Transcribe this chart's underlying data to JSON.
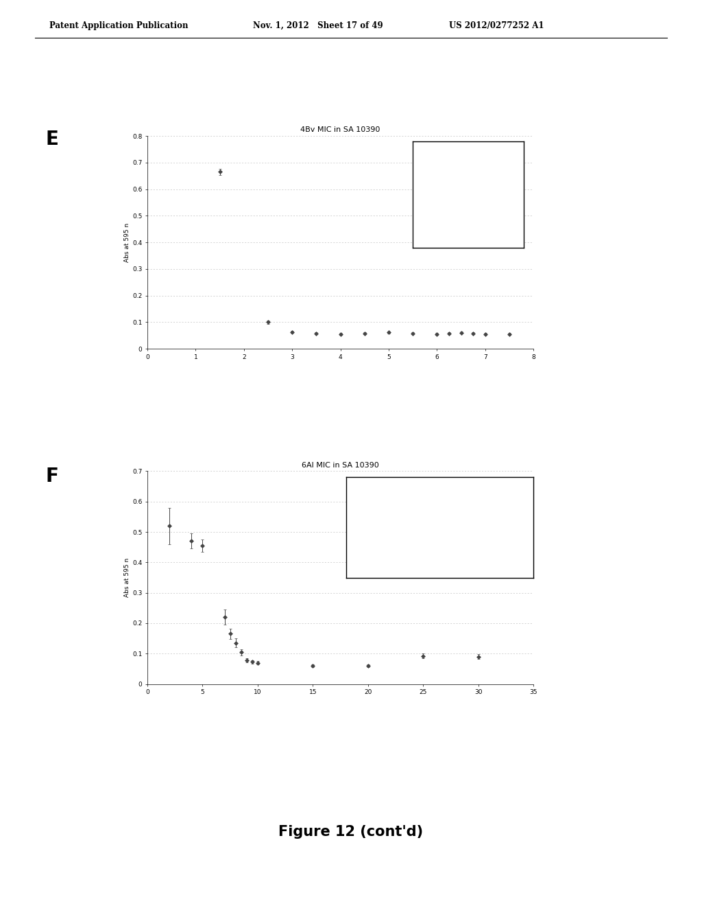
{
  "header_left": "Patent Application Publication",
  "header_mid": "Nov. 1, 2012   Sheet 17 of 49",
  "header_right": "US 2012/0277252 A1",
  "panel_E": {
    "label": "E",
    "title": "4Bv MIC in SA 10390",
    "ylabel": "Abs at 595 n",
    "xlim": [
      0,
      8
    ],
    "ylim": [
      0,
      0.8
    ],
    "yticks": [
      0,
      0.1,
      0.2,
      0.3,
      0.4,
      0.5,
      0.6,
      0.7,
      0.8
    ],
    "xticks": [
      0,
      1,
      2,
      3,
      4,
      5,
      6,
      7,
      8
    ],
    "data_x": [
      1.5,
      2.5,
      3.0,
      3.5,
      4.0,
      4.5,
      5.0,
      5.5,
      6.0,
      6.25,
      6.5,
      6.75,
      7.0,
      7.5
    ],
    "data_y": [
      0.665,
      0.1,
      0.063,
      0.058,
      0.055,
      0.058,
      0.062,
      0.058,
      0.055,
      0.058,
      0.06,
      0.058,
      0.055,
      0.055
    ],
    "data_yerr": [
      0.012,
      0.007,
      0.004,
      0.004,
      0.004,
      0.004,
      0.004,
      0.004,
      0.004,
      0.004,
      0.004,
      0.004,
      0.004,
      0.004
    ]
  },
  "panel_F": {
    "label": "F",
    "title": "6Al MIC in SA 10390",
    "ylabel": "Abs at 595 n",
    "xlim": [
      0,
      35
    ],
    "ylim": [
      0,
      0.7
    ],
    "yticks": [
      0,
      0.1,
      0.2,
      0.3,
      0.4,
      0.5,
      0.6,
      0.7
    ],
    "xticks": [
      0,
      5,
      10,
      15,
      20,
      25,
      30,
      35
    ],
    "data_x": [
      2.0,
      4.0,
      5.0,
      7.0,
      7.5,
      8.0,
      8.5,
      9.0,
      9.5,
      10.0,
      15.0,
      20.0,
      25.0,
      30.0
    ],
    "data_y": [
      0.52,
      0.47,
      0.455,
      0.22,
      0.165,
      0.135,
      0.105,
      0.078,
      0.073,
      0.07,
      0.06,
      0.06,
      0.092,
      0.09
    ],
    "data_yerr": [
      0.06,
      0.025,
      0.02,
      0.025,
      0.018,
      0.015,
      0.01,
      0.006,
      0.006,
      0.006,
      0.005,
      0.005,
      0.008,
      0.008
    ]
  },
  "figure_caption": "Figure 12 (cont'd)",
  "bg_color": "#ffffff",
  "grid_color": "#bbbbbb",
  "data_color": "#444444",
  "marker": "D",
  "marker_size": 3
}
